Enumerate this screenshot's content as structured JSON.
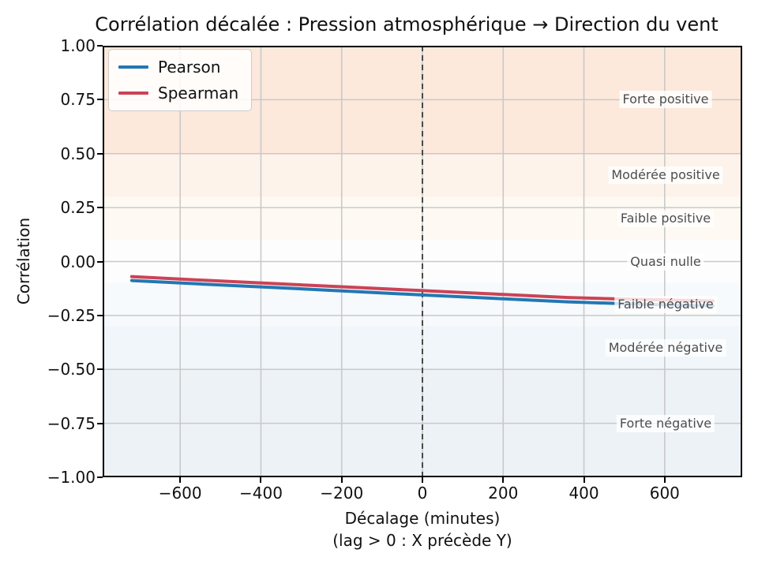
{
  "title": "Corrélation décalée : Pression atmosphérique → Direction du vent",
  "axes": {
    "ylabel": "Corrélation",
    "xlabel_line1": "Décalage (minutes)",
    "xlabel_line2": "(lag > 0 : X précède Y)"
  },
  "legend": {
    "items": [
      {
        "label": "Pearson",
        "color": "#2277b4"
      },
      {
        "label": "Spearman",
        "color": "#cb4355"
      }
    ]
  },
  "chart_data": {
    "type": "line",
    "title": "Corrélation décalée : Pression atmosphérique → Direction du vent",
    "xlabel": "Décalage (minutes) (lag > 0 : X précède Y)",
    "ylabel": "Corrélation",
    "xlim": [
      -792,
      792
    ],
    "ylim": [
      -1.0,
      1.0
    ],
    "x_ticks": [
      -600,
      -400,
      -200,
      0,
      200,
      400,
      600
    ],
    "y_ticks": [
      1.0,
      0.75,
      0.5,
      0.25,
      0.0,
      -0.25,
      -0.5,
      -0.75,
      -1.0
    ],
    "grid": true,
    "grid_color": "#c9c9c9",
    "legend_position": "upper-left",
    "x": [
      -720,
      -540,
      -360,
      -180,
      0,
      180,
      360,
      540,
      720
    ],
    "series": [
      {
        "name": "Pearson",
        "color": "#2277b4",
        "values": [
          -0.088,
          -0.105,
          -0.121,
          -0.138,
          -0.155,
          -0.171,
          -0.187,
          -0.198,
          -0.206
        ]
      },
      {
        "name": "Spearman",
        "color": "#cb4355",
        "values": [
          -0.07,
          -0.087,
          -0.103,
          -0.119,
          -0.135,
          -0.151,
          -0.167,
          -0.176,
          -0.183
        ]
      }
    ],
    "zero_lag_vline": {
      "x": 0,
      "style": "dashed",
      "color": "#4a4a4a"
    },
    "bands": [
      {
        "label": "Forte positive",
        "from": 0.5,
        "to": 1.0,
        "color": "#fce9dc",
        "label_y": 0.75
      },
      {
        "label": "Modérée positive",
        "from": 0.3,
        "to": 0.5,
        "color": "#fdf3ea",
        "label_y": 0.4
      },
      {
        "label": "Faible positive",
        "from": 0.1,
        "to": 0.3,
        "color": "#fefaf3",
        "label_y": 0.2
      },
      {
        "label": "Quasi nulle",
        "from": -0.1,
        "to": 0.1,
        "color": "#fdfdfd",
        "label_y": 0.0
      },
      {
        "label": "Faible négative",
        "from": -0.3,
        "to": -0.1,
        "color": "#f7fafc",
        "label_y": -0.2
      },
      {
        "label": "Modérée négative",
        "from": -0.5,
        "to": -0.3,
        "color": "#f1f6fa",
        "label_y": -0.4
      },
      {
        "label": "Forte négative",
        "from": -1.0,
        "to": -0.5,
        "color": "#edf2f7",
        "label_y": -0.75
      }
    ]
  }
}
